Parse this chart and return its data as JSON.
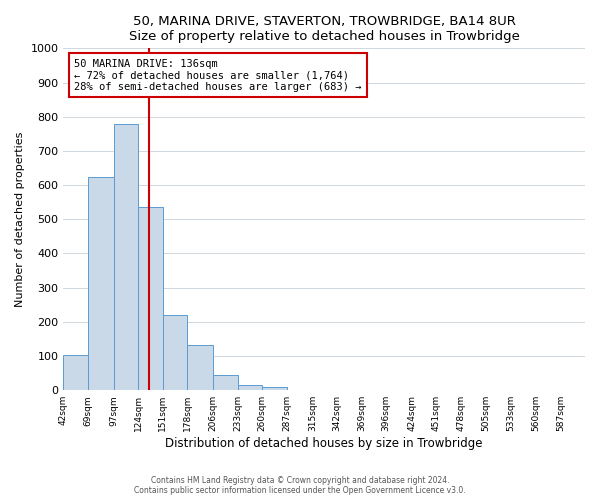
{
  "title": "50, MARINA DRIVE, STAVERTON, TROWBRIDGE, BA14 8UR",
  "subtitle": "Size of property relative to detached houses in Trowbridge",
  "xlabel": "Distribution of detached houses by size in Trowbridge",
  "ylabel": "Number of detached properties",
  "bin_labels": [
    "42sqm",
    "69sqm",
    "97sqm",
    "124sqm",
    "151sqm",
    "178sqm",
    "206sqm",
    "233sqm",
    "260sqm",
    "287sqm",
    "315sqm",
    "342sqm",
    "369sqm",
    "396sqm",
    "424sqm",
    "451sqm",
    "478sqm",
    "505sqm",
    "533sqm",
    "560sqm",
    "587sqm"
  ],
  "bar_values": [
    103,
    625,
    780,
    535,
    220,
    133,
    45,
    15,
    10,
    0,
    0,
    0,
    0,
    0,
    0,
    0,
    0,
    0,
    0,
    0,
    0
  ],
  "bar_color": "#c9d9e8",
  "bar_edge_color": "#5b9bd5",
  "ref_line_label": "50 MARINA DRIVE: 136sqm",
  "annotation_line1": "← 72% of detached houses are smaller (1,764)",
  "annotation_line2": "28% of semi-detached houses are larger (683) →",
  "annotation_box_color": "#ffffff",
  "annotation_box_edge": "#cc0000",
  "ref_line_color": "#cc0000",
  "ylim": [
    0,
    1000
  ],
  "yticks": [
    0,
    100,
    200,
    300,
    400,
    500,
    600,
    700,
    800,
    900,
    1000
  ],
  "footer_line1": "Contains HM Land Registry data © Crown copyright and database right 2024.",
  "footer_line2": "Contains public sector information licensed under the Open Government Licence v3.0.",
  "bin_edges": [
    42,
    69,
    97,
    124,
    151,
    178,
    206,
    233,
    260,
    287,
    315,
    342,
    369,
    396,
    424,
    451,
    478,
    505,
    533,
    560,
    587,
    614
  ],
  "ref_line_x": 136
}
